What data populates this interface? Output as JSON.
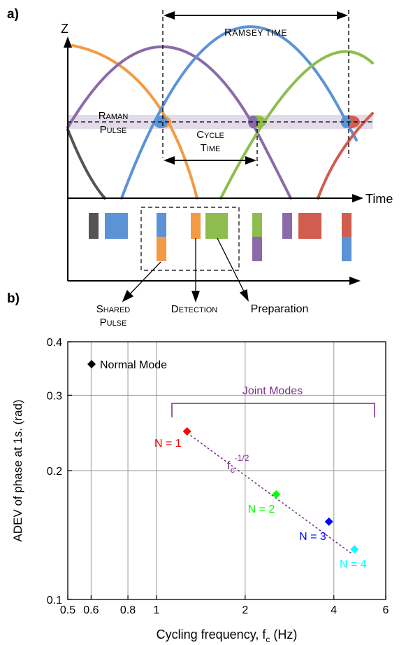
{
  "colors": {
    "gray": "#555555",
    "blue": "#5b93d6",
    "orange": "#f39a45",
    "green": "#8ebd4e",
    "purple": "#8a6aa8",
    "red": "#d15d4f",
    "band": "#e3dbe9",
    "bracket": "#7b2a8e"
  },
  "panel_a": {
    "label": "a)",
    "axis_z": "Z",
    "axis_time": "Time",
    "ramsey_time": {
      "cap": "R",
      "rest": "AMSEY TIME"
    },
    "raman_pulse": {
      "l1cap": "R",
      "l1rest": "AMAN",
      "l2cap": "P",
      "l2rest": "ULSE"
    },
    "cycle_time": {
      "l1cap": "C",
      "l1rest": "YCLE",
      "l2cap": "T",
      "l2rest": "IME"
    },
    "shared_pulse": {
      "l1cap": "S",
      "l1rest": "HARED",
      "l2cap": "P",
      "l2rest": "ULSE"
    },
    "detection": {
      "cap": "D",
      "rest": "ETECTION"
    },
    "preparation": "Preparation"
  },
  "panel_b": {
    "label": "b)"
  },
  "chart_data": {
    "type": "scatter",
    "xscale": "log",
    "yscale": "log",
    "xlim": [
      0.5,
      6
    ],
    "ylim": [
      0.1,
      0.4
    ],
    "xticks": [
      "0.5",
      "0.6",
      "0.8",
      "1",
      "2",
      "4",
      "6"
    ],
    "yticks": [
      "0.1",
      "0.2",
      "0.3",
      "0.4"
    ],
    "xlabel": "Cycling frequency, f",
    "xlabel_sub": "c",
    "xlabel_unit": " (Hz)",
    "ylabel": "ADEV of phase at 1s. (rad)",
    "grid": true,
    "legend": {
      "label": "Normal Mode",
      "placement": "top-left"
    },
    "bracket_label": "Joint Modes",
    "fit_label": {
      "base": "f",
      "sub": "c",
      "sup": "-1/2"
    },
    "fit_line": {
      "x": [
        1.27,
        4.6
      ],
      "y": [
        0.245,
        0.128
      ]
    },
    "points": [
      {
        "x": 1.27,
        "y": 0.247,
        "label": "N = 1",
        "color": "#ff0000"
      },
      {
        "x": 2.55,
        "y": 0.176,
        "label": "N = 2",
        "color": "#00ff00"
      },
      {
        "x": 3.85,
        "y": 0.152,
        "label": "N = 3",
        "color": "#0000ff"
      },
      {
        "x": 4.7,
        "y": 0.131,
        "label": "N = 4",
        "color": "#00ffff"
      }
    ]
  }
}
